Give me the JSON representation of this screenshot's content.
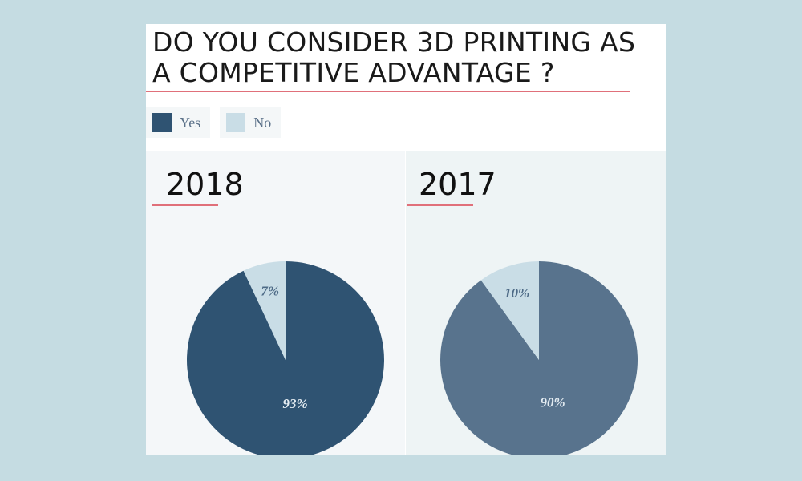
{
  "title": "DO YOU CONSIDER 3D PRINTING AS A COMPETITIVE ADVANTAGE ?",
  "legend": [
    {
      "label": "Yes",
      "color": "#2f5372"
    },
    {
      "label": "No",
      "color": "#c9dde6"
    }
  ],
  "chart_data": [
    {
      "type": "pie",
      "title": "2018",
      "slices": [
        {
          "label": "Yes",
          "value": 93,
          "display": "93%",
          "color": "#2f5372"
        },
        {
          "label": "No",
          "value": 7,
          "display": "7%",
          "color": "#c9dde6"
        }
      ]
    },
    {
      "type": "pie",
      "title": "2017",
      "slices": [
        {
          "label": "Yes",
          "value": 90,
          "display": "90%",
          "color": "#58738d"
        },
        {
          "label": "No",
          "value": 10,
          "display": "10%",
          "color": "#c9dde6"
        }
      ]
    }
  ]
}
